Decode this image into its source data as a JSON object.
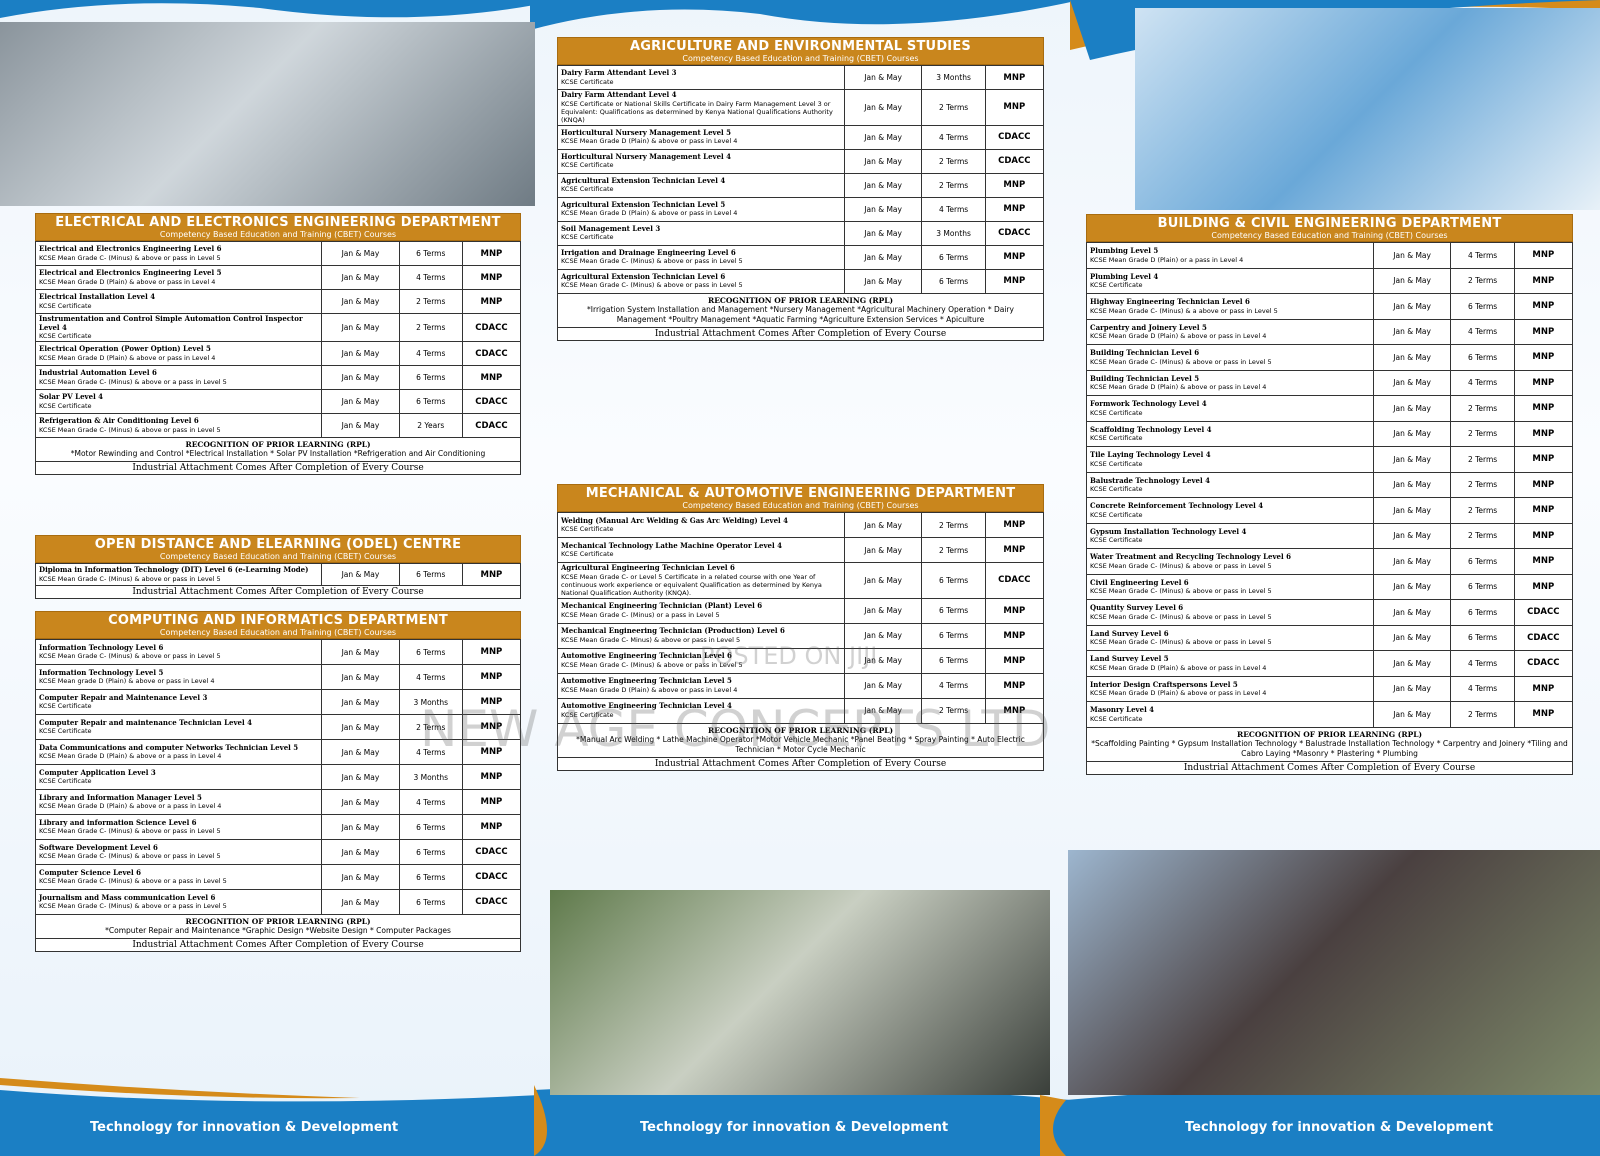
{
  "sections": [
    {
      "title": "ELECTRICAL AND ELECTRONICS ENGINEERING DEPARTMENT",
      "subtitle": "Competency Based Education and Training (CBET) Courses",
      "rows": [
        [
          "Electrical and Electronics Engineering Level 6",
          "KCSE Mean Grade C- (Minus) & above or pass in Level 5",
          "Jan & May",
          "6 Terms",
          "MNP"
        ],
        [
          "Electrical and Electronics Engineering Level 5",
          "KCSE Mean Grade D (Plain) & above or pass in Level 4",
          "Jan & May",
          "4 Terms",
          "MNP"
        ],
        [
          "Electrical Installation Level 4",
          "KCSE Certificate",
          "Jan & May",
          "2 Terms",
          "MNP"
        ],
        [
          "Instrumentation and Control Simple Automation Control Inspector Level 4",
          "KCSE Certificate",
          "Jan & May",
          "2 Terms",
          "CDACC"
        ],
        [
          "Electrical Operation (Power Option) Level 5",
          "KCSE Mean Grade D (Plain) & above or pass in Level 4",
          "Jan & May",
          "4 Terms",
          "CDACC"
        ],
        [
          "Industrial Automation Level 6",
          "KCSE Mean Grade C- (Minus) & above or a pass in Level 5",
          "Jan & May",
          "6 Terms",
          "MNP"
        ],
        [
          "Solar PV Level 4",
          "KCSE Certificate",
          "Jan & May",
          "6 Terms",
          "CDACC"
        ],
        [
          "Refrigeration & Air Conditioning Level 6",
          "KCSE Mean Grade C- (Minus) & above or pass in Level 5",
          "Jan & May",
          "2 Years",
          "CDACC"
        ]
      ],
      "rpl_title": "RECOGNITION OF PRIOR LEARNING (RPL)",
      "rpl": "*Motor Rewinding and Control *Electrical Installation * Solar PV Installation *Refrigeration and Air Conditioning",
      "note": "Industrial Attachment Comes After Completion of Every Course"
    },
    {
      "title": "OPEN DISTANCE AND ELEARNING (ODEL) CENTRE",
      "subtitle": "Competency Based Education and Training (CBET) Courses",
      "rows": [
        [
          "Diploma in Information Technology (DIT) Level 6 (e-Learning Mode)",
          "KCSE Mean Grade C- (Minus) & above or pass in Level 5",
          "Jan & May",
          "6 Terms",
          "MNP"
        ]
      ],
      "note": "Industrial Attachment Comes After Completion of Every Course"
    },
    {
      "title": "COMPUTING AND INFORMATICS DEPARTMENT",
      "subtitle": "Competency Based Education and Training (CBET) Courses",
      "rows": [
        [
          "Information Technology Level 6",
          "KCSE Mean Grade C- (Minus) & above or pass in Level 5",
          "Jan & May",
          "6 Terms",
          "MNP"
        ],
        [
          "Information Technology Level 5",
          "KCSE Mean grade D (Plain) & above or pass in Level 4",
          "Jan & May",
          "4 Terms",
          "MNP"
        ],
        [
          "Computer Repair and Maintenance Level 3",
          "KCSE Certificate",
          "Jan & May",
          "3 Months",
          "MNP"
        ],
        [
          "Computer Repair and maintenance Technician Level 4",
          "KCSE Certificate",
          "Jan & May",
          "2 Terms",
          "MNP"
        ],
        [
          "Data Communications and computer Networks Technician Level 5",
          "KCSE Mean Grade D (Plain) & above or a pass in Level 4",
          "Jan & May",
          "4 Terms",
          "MNP"
        ],
        [
          "Computer Application Level 3",
          "KCSE Certificate",
          "Jan & May",
          "3 Months",
          "MNP"
        ],
        [
          "Library and Information Manager Level 5",
          "KCSE Mean Grade D (Plain) & above or a pass in Level 4",
          "Jan & May",
          "4 Terms",
          "MNP"
        ],
        [
          "Library and information Science Level 6",
          "KCSE Mean Grade C- (Minus) & above or pass in Level 5",
          "Jan & May",
          "6 Terms",
          "MNP"
        ],
        [
          "Software Development Level 6",
          "KCSE Mean Grade C- (Minus) & above or pass in Level 5",
          "Jan & May",
          "6 Terms",
          "CDACC"
        ],
        [
          "Computer Science Level 6",
          "KCSE Mean Grade C- (Minus) & above or a pass in Level 5",
          "Jan & May",
          "6 Terms",
          "CDACC"
        ],
        [
          "Journalism and Mass communication Level 6",
          "KCSE Mean Grade C- (Minus) & above or a pass in Level 5",
          "Jan & May",
          "6 Terms",
          "CDACC"
        ]
      ],
      "rpl_title": "RECOGNITION OF PRIOR LEARNING (RPL)",
      "rpl": "*Computer Repair and Maintenance *Graphic Design *Website Design * Computer Packages",
      "note": "Industrial Attachment Comes After Completion of Every Course"
    },
    {
      "title": "AGRICULTURE AND ENVIRONMENTAL STUDIES",
      "subtitle": "Competency Based Education and Training (CBET) Courses",
      "rows": [
        [
          "Dairy Farm Attendant Level 3",
          "KCSE Certificate",
          "Jan & May",
          "3 Months",
          "MNP"
        ],
        [
          "Dairy Farm Attendant Level 4",
          "KCSE Certificate or National Skills Certificate in Dairy Farm Management Level 3 or Equivalent: Qualifications as determined by Kenya National Qualifications Authority (KNQA)",
          "Jan & May",
          "2 Terms",
          "MNP"
        ],
        [
          "Horticultural Nursery Management Level 5",
          "KCSE Mean Grade D (Plain) & above or pass in Level 4",
          "Jan & May",
          "4 Terms",
          "CDACC"
        ],
        [
          "Horticultural Nursery Management Level 4",
          "KCSE Certificate",
          "Jan & May",
          "2 Terms",
          "CDACC"
        ],
        [
          "Agricultural Extension Technician Level 4",
          "KCSE Certificate",
          "Jan & May",
          "2 Terms",
          "MNP"
        ],
        [
          "Agricultural Extension Technician Level 5",
          "KCSE Mean Grade D (Plain) & above or pass in Level 4",
          "Jan & May",
          "4 Terms",
          "MNP"
        ],
        [
          "Soil Management Level 3",
          "KCSE Certificate",
          "Jan & May",
          "3 Months",
          "CDACC"
        ],
        [
          "Irrigation and Drainage Engineering Level 6",
          "KCSE Mean Grade C- (Minus) & above or pass in Level 5",
          "Jan & May",
          "6 Terms",
          "MNP"
        ],
        [
          "Agricultural Extension Technician Level 6",
          "KCSE Mean Grade C- (Minus) & above or pass in Level 5",
          "Jan & May",
          "6 Terms",
          "MNP"
        ]
      ],
      "rpl_title": "RECOGNITION OF PRIOR LEARNING (RPL)",
      "rpl": "*Irrigation System Installation and Management *Nursery Management *Agricultural Machinery Operation * Dairy Management *Poultry Management *Aquatic Farming *Agriculture Extension Services * Apiculture",
      "note": "Industrial Attachment Comes After Completion of Every Course"
    },
    {
      "title": "MECHANICAL & AUTOMOTIVE ENGINEERING DEPARTMENT",
      "subtitle": "Competency Based Education and Training (CBET) Courses",
      "rows": [
        [
          "Welding (Manual Arc Welding & Gas Arc Welding) Level 4",
          "KCSE Certificate",
          "Jan & May",
          "2 Terms",
          "MNP"
        ],
        [
          "Mechanical Technology Lathe Machine Operator Level 4",
          "KCSE Certificate",
          "Jan & May",
          "2 Terms",
          "MNP"
        ],
        [
          "Agricultural Engineering Technician Level 6",
          "KCSE Mean Grade C- or Level 5 Certificate in a related course with one Year of continuous work experience or equivalent Qualification as determined by Kenya National Qualification Authority (KNQA).",
          "Jan & May",
          "6 Terms",
          "CDACC"
        ],
        [
          "Mechanical Engineering Technician (Plant) Level 6",
          "KCSE Mean Grade C- (Minus) or a pass in Level 5",
          "Jan & May",
          "6 Terms",
          "MNP"
        ],
        [
          "Mechanical Engineering Technician (Production) Level 6",
          "KCSE Mean Grade C- Minus) & above or pass in Level 5",
          "Jan & May",
          "6 Terms",
          "MNP"
        ],
        [
          "Automotive Engineering Technician Level 6",
          "KCSE Mean Grade C- (Minus) & above or pass in Level 5",
          "Jan & May",
          "6 Terms",
          "MNP"
        ],
        [
          "Automotive Engineering Technician Level 5",
          "KCSE Mean Grade D (Plain) & above or pass in Level 4",
          "Jan & May",
          "4 Terms",
          "MNP"
        ],
        [
          "Automotive Engineering Technician Level 4",
          "KCSE Certificate",
          "Jan & May",
          "2 Terms",
          "MNP"
        ]
      ],
      "rpl_title": "RECOGNITION OF PRIOR LEARNING (RPL)",
      "rpl": "*Manual Arc Welding * Lathe Machine Operator *Motor Vehicle Mechanic *Panel Beating * Spray Painting * Auto Electric Technician * Motor Cycle Mechanic",
      "note": "Industrial Attachment Comes After Completion of Every Course"
    },
    {
      "title": "BUILDING & CIVIL ENGINEERING DEPARTMENT",
      "subtitle": "Competency Based Education and Training (CBET) Courses",
      "rows": [
        [
          "Plumbing Level 5",
          "KCSE Mean Grade D (Plain) or a pass in Level 4",
          "Jan & May",
          "4 Terms",
          "MNP"
        ],
        [
          "Plumbing Level 4",
          "KCSE Certificate",
          "Jan & May",
          "2 Terms",
          "MNP"
        ],
        [
          "Highway Engineering Technician Level 6",
          "KCSE Mean Grade C- (Minus) & a above or pass in Level 5",
          "Jan & May",
          "6 Terms",
          "MNP"
        ],
        [
          "Carpentry and Joinery Level 5",
          "KCSE Mean Grade D (Plain) & above or pass in Level 4",
          "Jan & May",
          "4 Terms",
          "MNP"
        ],
        [
          "Building Technician Level 6",
          "KCSE Mean Grade C- (Minus) & above or pass in Level 5",
          "Jan & May",
          "6 Terms",
          "MNP"
        ],
        [
          "Building Technician Level 5",
          "KCSE Mean Grade D (Plain) & above or pass in Level 4",
          "Jan & May",
          "4 Terms",
          "MNP"
        ],
        [
          "Formwork Technology Level 4",
          "KCSE Certificate",
          "Jan & May",
          "2 Terms",
          "MNP"
        ],
        [
          "Scaffolding Technology Level 4",
          "KCSE Certificate",
          "Jan & May",
          "2 Terms",
          "MNP"
        ],
        [
          "Tile Laying Technology Level 4",
          "KCSE Certificate",
          "Jan & May",
          "2 Terms",
          "MNP"
        ],
        [
          "Balustrade Technology Level 4",
          "KCSE Certificate",
          "Jan & May",
          "2 Terms",
          "MNP"
        ],
        [
          "Concrete Reinforcement Technology Level 4",
          "KCSE Certificate",
          "Jan & May",
          "2 Terms",
          "MNP"
        ],
        [
          "Gypsum Installation Technology Level 4",
          "KCSE Certificate",
          "Jan & May",
          "2 Terms",
          "MNP"
        ],
        [
          "Water Treatment and Recycling Technology Level 6",
          "KCSE Mean Grade C- (Minus) & above or pass in Level 5",
          "Jan & May",
          "6 Terms",
          "MNP"
        ],
        [
          "Civil Engineering Level 6",
          "KCSE Mean Grade C- (Minus) & above or pass in Level 5",
          "Jan & May",
          "6 Terms",
          "MNP"
        ],
        [
          "Quantity Survey Level 6",
          "KCSE Mean Grade C- (Minus) & above or pass in Level 5",
          "Jan & May",
          "6 Terms",
          "CDACC"
        ],
        [
          "Land Survey Level 6",
          "KCSE Mean Grade C- (Minus) & above or pass in Level 5",
          "Jan & May",
          "6 Terms",
          "CDACC"
        ],
        [
          "Land Survey Level 5",
          "KCSE Mean Grade D (Plain) & above or pass in Level 4",
          "Jan & May",
          "4 Terms",
          "CDACC"
        ],
        [
          "Interior Design Craftspersons Level 5",
          "KCSE Mean Grade D (Plain) & above or pass in Level 4",
          "Jan & May",
          "4 Terms",
          "MNP"
        ],
        [
          "Masonry Level 4",
          "KCSE Certificate",
          "Jan & May",
          "2 Terms",
          "MNP"
        ]
      ],
      "rpl_title": "RECOGNITION OF PRIOR LEARNING (RPL)",
      "rpl": "*Scaffolding Painting * Gypsum Installation Technology * Balustrade Installation Technology * Carpentry and Joinery *Tiling and Cabro Laying *Masonry * Plastering * Plumbing",
      "note": "Industrial Attachment Comes After Completion of Every Course"
    }
  ],
  "footer": [
    "Technology for innovation & Development",
    "Technology for innovation & Development",
    "Technology for innovation & Development"
  ],
  "watermark": [
    "POSTED ON JIJI",
    "NEW AGE CONCEPTS LTD"
  ]
}
